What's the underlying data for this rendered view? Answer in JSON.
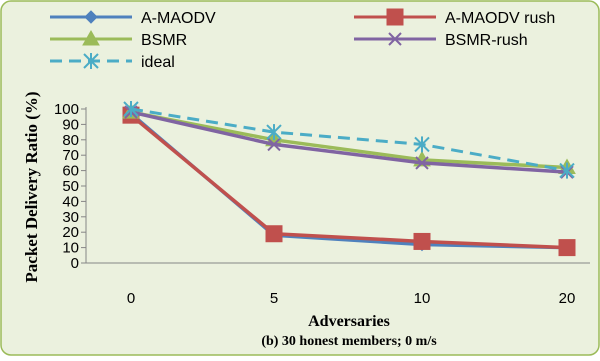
{
  "chart_data": {
    "type": "line",
    "title": "",
    "caption": "(b) 30 honest members; 0 m/s",
    "xlabel": "Adversaries",
    "ylabel": "Packet Delivery Ratio (%)",
    "categories": [
      "0",
      "5",
      "10",
      "20"
    ],
    "ylim": [
      0,
      100
    ],
    "yticks": [
      0,
      10,
      20,
      30,
      40,
      50,
      60,
      70,
      80,
      90,
      100
    ],
    "grid": false,
    "legend_position": "top",
    "background_color": "#ebf1de",
    "border_color": "#9bbb59",
    "series": [
      {
        "name": "A-MAODV",
        "values": [
          97,
          18,
          12,
          10
        ],
        "color": "#4f81bd",
        "marker": "diamond",
        "dash": "solid"
      },
      {
        "name": "A-MAODV rush",
        "values": [
          96,
          19,
          14,
          10
        ],
        "color": "#c0504d",
        "marker": "square",
        "dash": "solid"
      },
      {
        "name": "BSMR",
        "values": [
          98,
          80,
          67,
          62
        ],
        "color": "#9bbb59",
        "marker": "triangle",
        "dash": "solid"
      },
      {
        "name": "BSMR-rush",
        "values": [
          98,
          77,
          65,
          59
        ],
        "color": "#8064a2",
        "marker": "x",
        "dash": "solid"
      },
      {
        "name": "ideal",
        "values": [
          100,
          85,
          77,
          60
        ],
        "color": "#4bacc6",
        "marker": "star",
        "dash": "dashed"
      }
    ]
  }
}
